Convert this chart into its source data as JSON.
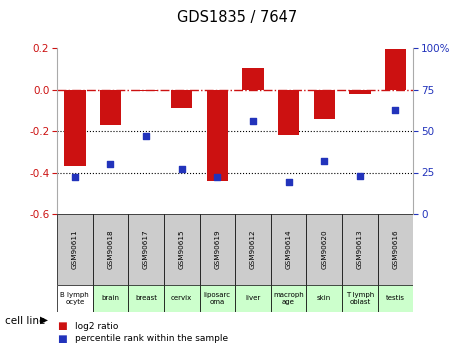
{
  "title": "GDS1835 / 7647",
  "samples": [
    "GSM90611",
    "GSM90618",
    "GSM90617",
    "GSM90615",
    "GSM90619",
    "GSM90612",
    "GSM90614",
    "GSM90620",
    "GSM90613",
    "GSM90616"
  ],
  "cell_lines": [
    "B lymph\nocyte",
    "brain",
    "breast",
    "cervix",
    "liposarc\noma",
    "liver",
    "macroph\nage",
    "skin",
    "T lymph\noblast",
    "testis"
  ],
  "log2_ratio": [
    -0.37,
    -0.17,
    -0.005,
    -0.09,
    -0.44,
    0.105,
    -0.22,
    -0.14,
    -0.02,
    0.195
  ],
  "pct_rank": [
    22,
    30,
    47,
    27,
    22,
    56,
    19,
    32,
    23,
    63
  ],
  "ylim_left": [
    -0.6,
    0.2
  ],
  "ylim_right": [
    0,
    100
  ],
  "bar_color": "#cc1111",
  "dot_color": "#2233bb",
  "dashed_line_color": "#cc1111",
  "bg_header": "#cccccc",
  "cell_colors": [
    "#ffffff",
    "#ccffcc",
    "#ccffcc",
    "#ccffcc",
    "#ccffcc",
    "#ccffcc",
    "#ccffcc",
    "#ccffcc",
    "#ccffcc",
    "#ccffcc"
  ],
  "legend_log2": "log2 ratio",
  "legend_pct": "percentile rank within the sample",
  "cell_line_label": "cell line"
}
